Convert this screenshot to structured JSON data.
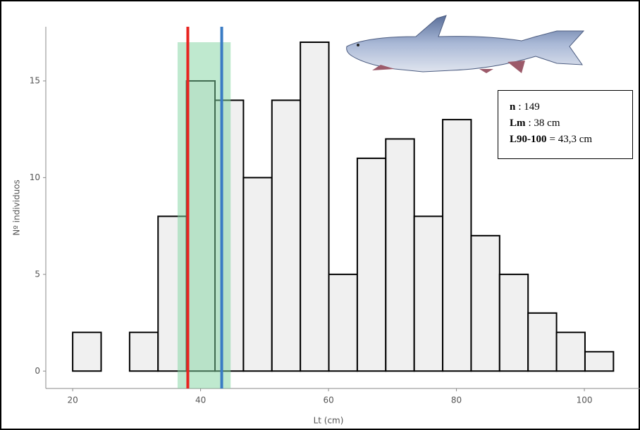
{
  "chart_data": {
    "type": "histogram",
    "bins": [
      20,
      24.45,
      28.9,
      33.35,
      37.8,
      42.25,
      46.7,
      51.15,
      55.6,
      60.05,
      64.5,
      68.95,
      73.4,
      77.85,
      82.3,
      86.75,
      91.2,
      95.65,
      100.1,
      104.55
    ],
    "values": [
      2,
      0,
      2,
      8,
      15,
      14,
      10,
      14,
      17,
      5,
      11,
      12,
      8,
      13,
      7,
      5,
      3,
      2,
      1
    ],
    "color": "#f0f0f0",
    "xlabel": "Lt (cm)",
    "ylabel": "Nº individuos",
    "xlim": [
      15.8,
      108.7
    ],
    "ylim": [
      -0.9,
      17.8
    ],
    "xticks": [
      20,
      40,
      60,
      80,
      100
    ],
    "yticks": [
      0,
      5,
      10,
      15
    ],
    "grid": false,
    "vlines": [
      {
        "x": 38,
        "color": "#e8231f"
      },
      {
        "x": 43.3,
        "color": "#3a7cc4"
      }
    ],
    "band_x": [
      36.4,
      44.7
    ],
    "band_top": 17,
    "band_color": "#7fd4a0",
    "annotations": [
      {
        "label": "n",
        "text": ": 149"
      },
      {
        "label": "Lm",
        "text": ": 38 cm"
      },
      {
        "label": "L90-100",
        "text": "= 43,3 cm"
      }
    ]
  }
}
